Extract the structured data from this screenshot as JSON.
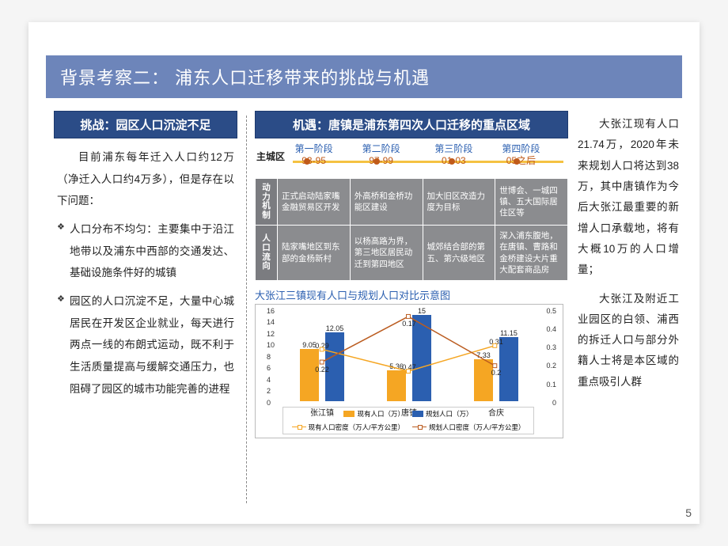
{
  "title": "背景考察二：  浦东人口迁移带来的挑战与机遇",
  "pagenum": "5",
  "colors": {
    "band": "#6d85ba",
    "panelHead": "#2b4c87",
    "barCurrent": "#f5a623",
    "barPlanned": "#2b5fb0",
    "lineCurrent": "#f5a623",
    "linePlanned": "#bb5c20",
    "timelineYellow": "#f5c242",
    "timelineDot": "#c05a1a"
  },
  "left": {
    "head": "挑战：园区人口沉淀不足",
    "intro": "目前浦东每年迁入人口约12万（净迁入人口约4万多），但是存在以下问题：",
    "b1": "人口分布不均匀：主要集中于沿江地带以及浦东中西部的交通发达、基础设施条件好的城镇",
    "b2": "园区的人口沉淀不足，大量中心城居民在开发区企业就业，每天进行两点一线的布朗式运动，既不利于生活质量提高与缓解交通压力，也阻碍了园区的城市功能完善的进程"
  },
  "mid": {
    "head": "机遇：唐镇是浦东第四次人口迁移的重点区域",
    "timeline": {
      "city": "主城区",
      "phases": [
        {
          "name": "第一阶段",
          "years": "93-95",
          "leftPct": 9
        },
        {
          "name": "第二阶段",
          "years": "97-99",
          "leftPct": 34
        },
        {
          "name": "第三阶段",
          "years": "01-03",
          "leftPct": 61
        },
        {
          "name": "第四阶段",
          "years": "05之后",
          "leftPct": 86
        }
      ],
      "dots": [
        4,
        30,
        58,
        82
      ]
    },
    "table": {
      "rh1": "动力机制",
      "rh2": "人口流向",
      "r1": [
        "正式启动陆家嘴金融贸易区开发",
        "外高桥和金桥功能区建设",
        "加大旧区改造力度为目标",
        "世博会、一城四镇、五大国际居住区等"
      ],
      "r2": [
        "陆家嘴地区到东部的金杨新村",
        "以杨高路为界，第三地区居民动迁到第四地区",
        "城郊结合部的第五、第六级地区",
        "深入浦东腹地，在唐镇、曹路和金桥建设大片重大配套商品房"
      ]
    },
    "chart": {
      "title": "大张江三镇现有人口与规划人口对比示意图",
      "yLeft": {
        "max": 16,
        "ticks": [
          0,
          2,
          4,
          6,
          8,
          10,
          12,
          14,
          16
        ]
      },
      "yRight": {
        "max": 0.5,
        "ticks": [
          0,
          0.1,
          0.2,
          0.3,
          0.4,
          0.5
        ]
      },
      "categories": [
        "张江镇",
        "唐镇",
        "合庆"
      ],
      "barsCurrent": [
        9.05,
        5.36,
        7.33
      ],
      "barsPlanned": [
        12.05,
        15,
        11.15
      ],
      "lineCurrent": [
        0.29,
        0.17,
        0.31
      ],
      "linePlanned": [
        0.22,
        0.47,
        0.2
      ],
      "labels": {
        "c0a": "9.05",
        "c0b": "12.05",
        "c0l1": "0.29",
        "c0l2": "0.22",
        "c1a": "5.36",
        "c1b": "15",
        "c1l1": "0.47",
        "c1l2": "0.17",
        "c2a": "7.33",
        "c2b": "11.15",
        "c2l1": "0.31",
        "c2l2": "0.2"
      },
      "legend": {
        "a": "现有人口（万）",
        "b": "规划人口（万）",
        "c": "现有人口密度（万人/平方公里）",
        "d": "规划人口密度（万人/平方公里）"
      }
    }
  },
  "right": {
    "p1": "大张江现有人口21.74万，2020年未来规划人口将达到38万，其中唐镇作为今后大张江最重要的新增人口承载地，将有大概10万的人口增量；",
    "p2": "大张江及附近工业园区的白领、浦西的拆迁人口与部分外籍人士将是本区域的重点吸引人群"
  }
}
